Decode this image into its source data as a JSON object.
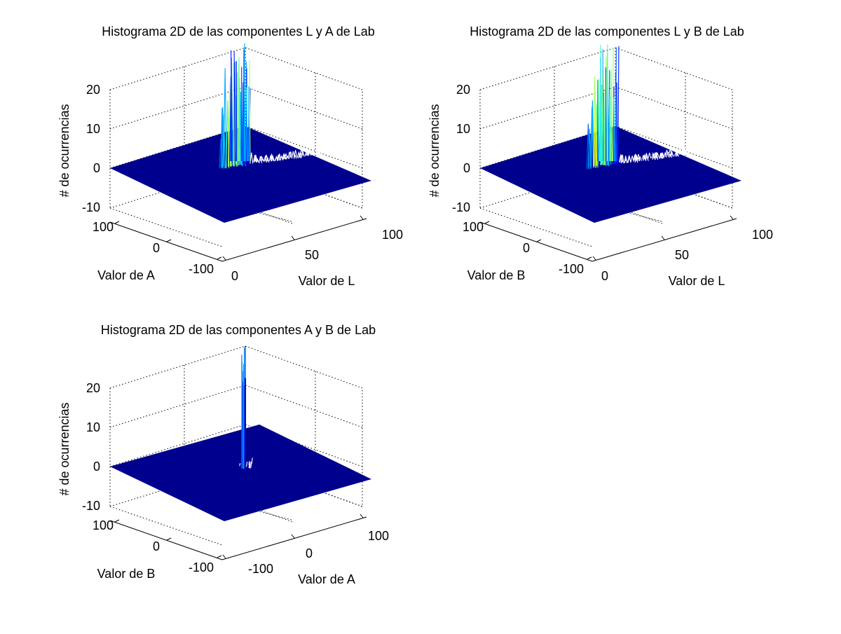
{
  "figure": {
    "background": "#ffffff"
  },
  "chart_data": [
    {
      "type": "surface",
      "title": "Histograma 2D de las componentes L y A de Lab",
      "xlabel": "Valor de L",
      "ylabel": "Valor de A",
      "zlabel": "# de ocurrencias",
      "xlim": [
        0,
        100
      ],
      "ylim": [
        -100,
        100
      ],
      "zlim": [
        -10,
        20
      ],
      "x_ticks": [
        "0",
        "50",
        "100"
      ],
      "y_ticks": [
        "-100",
        "0",
        "100"
      ],
      "z_ticks": [
        "-10",
        "0",
        "10",
        "20"
      ],
      "grid": true,
      "colormap": "jet",
      "peak_region": {
        "x_range": [
          10,
          95
        ],
        "y_value_approx": 0,
        "max_z_clipped": true
      }
    },
    {
      "type": "surface",
      "title": "Histograma 2D de las componentes L y B de Lab",
      "xlabel": "Valor de L",
      "ylabel": "Valor de B",
      "zlabel": "# de ocurrencias",
      "xlim": [
        0,
        100
      ],
      "ylim": [
        -100,
        100
      ],
      "zlim": [
        -10,
        20
      ],
      "x_ticks": [
        "0",
        "50",
        "100"
      ],
      "y_ticks": [
        "-100",
        "0",
        "100"
      ],
      "z_ticks": [
        "-10",
        "0",
        "10",
        "20"
      ],
      "grid": true,
      "colormap": "jet",
      "peak_region": {
        "x_range": [
          10,
          95
        ],
        "y_value_approx": 0,
        "max_z_clipped": true
      }
    },
    {
      "type": "surface",
      "title": "Histograma 2D de las componentes A y B de Lab",
      "xlabel": "Valor de A",
      "ylabel": "Valor de B",
      "zlabel": "# de ocurrencias",
      "xlim": [
        -100,
        100
      ],
      "ylim": [
        -100,
        100
      ],
      "zlim": [
        -10,
        20
      ],
      "x_ticks": [
        "-100",
        "0",
        "100"
      ],
      "y_ticks": [
        "-100",
        "0",
        "100"
      ],
      "z_ticks": [
        "-10",
        "0",
        "10",
        "20"
      ],
      "grid": true,
      "colormap": "jet",
      "peak_region": {
        "x_value_approx": 0,
        "y_value_approx": 0,
        "max_z_clipped": true
      }
    }
  ]
}
